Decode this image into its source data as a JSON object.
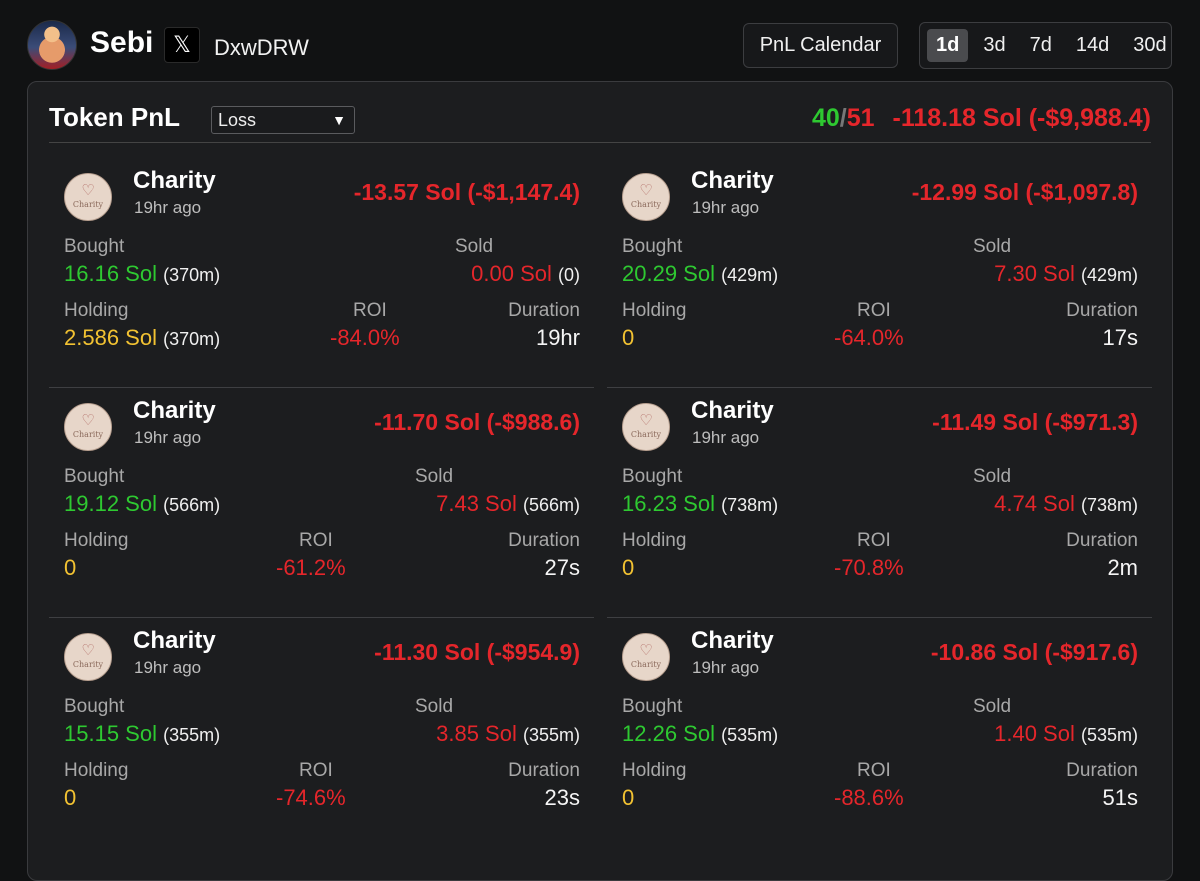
{
  "header": {
    "user_name": "Sebi",
    "x_symbol": "𝕏",
    "x_handle": "DxwDRW",
    "calendar_label": "PnL Calendar",
    "ranges": [
      "1d",
      "3d",
      "7d",
      "14d",
      "30d"
    ],
    "active_range": "1d"
  },
  "panel": {
    "title": "Token PnL",
    "filter_value": "Loss",
    "filter_caret": "▼",
    "wins": "40",
    "separator": "/",
    "losses": "51",
    "total": "-118.18 Sol (-$9,988.4)"
  },
  "labels": {
    "bought": "Bought",
    "sold": "Sold",
    "holding": "Holding",
    "roi": "ROI",
    "duration": "Duration",
    "logo_text": "Charity",
    "logo_heart": "♡"
  },
  "cards": [
    {
      "name": "Charity",
      "time": "19hr ago",
      "pnl": "-13.57 Sol (-$1,147.4)",
      "bought": "16.16 Sol",
      "bought_sub": "(370m)",
      "sold": "0.00 Sol",
      "sold_sub": "(0)",
      "holding": "2.586 Sol",
      "holding_sub": "(370m)",
      "roi": "-84.0%",
      "duration": "19hr"
    },
    {
      "name": "Charity",
      "time": "19hr ago",
      "pnl": "-12.99 Sol (-$1,097.8)",
      "bought": "20.29 Sol",
      "bought_sub": "(429m)",
      "sold": "7.30 Sol",
      "sold_sub": "(429m)",
      "holding": "0",
      "holding_sub": "",
      "roi": "-64.0%",
      "duration": "17s"
    },
    {
      "name": "Charity",
      "time": "19hr ago",
      "pnl": "-11.70 Sol (-$988.6)",
      "bought": "19.12 Sol",
      "bought_sub": "(566m)",
      "sold": "7.43 Sol",
      "sold_sub": "(566m)",
      "holding": "0",
      "holding_sub": "",
      "roi": "-61.2%",
      "duration": "27s"
    },
    {
      "name": "Charity",
      "time": "19hr ago",
      "pnl": "-11.49 Sol (-$971.3)",
      "bought": "16.23 Sol",
      "bought_sub": "(738m)",
      "sold": "4.74 Sol",
      "sold_sub": "(738m)",
      "holding": "0",
      "holding_sub": "",
      "roi": "-70.8%",
      "duration": "2m"
    },
    {
      "name": "Charity",
      "time": "19hr ago",
      "pnl": "-11.30 Sol (-$954.9)",
      "bought": "15.15 Sol",
      "bought_sub": "(355m)",
      "sold": "3.85 Sol",
      "sold_sub": "(355m)",
      "holding": "0",
      "holding_sub": "",
      "roi": "-74.6%",
      "duration": "23s"
    },
    {
      "name": "Charity",
      "time": "19hr ago",
      "pnl": "-10.86 Sol (-$917.6)",
      "bought": "12.26 Sol",
      "bought_sub": "(535m)",
      "sold": "1.40 Sol",
      "sold_sub": "(535m)",
      "holding": "0",
      "holding_sub": "",
      "roi": "-88.6%",
      "duration": "51s"
    }
  ],
  "colors": {
    "profit_green": "#2ec931",
    "loss_red": "#e5262b",
    "holding_gold": "#f2c232",
    "panel_bg": "#1c1d1f"
  }
}
